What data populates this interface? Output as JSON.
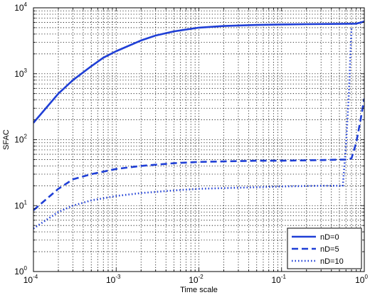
{
  "chart_data": {
    "type": "line",
    "xlabel": "Time scale",
    "ylabel": "SFAC",
    "xscale": "log",
    "yscale": "log",
    "xlim": [
      0.0001,
      1
    ],
    "ylim": [
      1,
      10000
    ],
    "x_ticks": [
      {
        "base": "10",
        "exp": "-4",
        "value": 0.0001
      },
      {
        "base": "10",
        "exp": "-3",
        "value": 0.001
      },
      {
        "base": "10",
        "exp": "-2",
        "value": 0.01
      },
      {
        "base": "10",
        "exp": "-1",
        "value": 0.1
      },
      {
        "base": "10",
        "exp": "0",
        "value": 1
      }
    ],
    "y_ticks": [
      {
        "base": "10",
        "exp": "0",
        "value": 1
      },
      {
        "base": "10",
        "exp": "1",
        "value": 10
      },
      {
        "base": "10",
        "exp": "2",
        "value": 100
      },
      {
        "base": "10",
        "exp": "3",
        "value": 1000
      },
      {
        "base": "10",
        "exp": "4",
        "value": 10000
      }
    ],
    "grid": true,
    "legend_position": "bottom-right",
    "line_color": "#1f3fd6",
    "series": [
      {
        "name": "nD=0",
        "style": "solid",
        "x": [
          0.0001,
          0.0002,
          0.0003,
          0.0005,
          0.0007,
          0.001,
          0.002,
          0.003,
          0.005,
          0.01,
          0.02,
          0.05,
          0.1,
          0.2,
          0.5,
          0.8,
          1
        ],
        "y": [
          180,
          500,
          800,
          1300,
          1750,
          2200,
          3200,
          3800,
          4400,
          5000,
          5300,
          5500,
          5600,
          5650,
          5700,
          5750,
          6200
        ]
      },
      {
        "name": "nD=5",
        "style": "dashed",
        "x": [
          0.0001,
          0.0002,
          0.0003,
          0.0005,
          0.001,
          0.002,
          0.005,
          0.01,
          0.05,
          0.1,
          0.3,
          0.6,
          0.7,
          0.8,
          0.9,
          1
        ],
        "y": [
          8.5,
          18,
          25,
          30,
          36,
          40,
          44,
          46,
          48,
          48,
          49,
          50,
          52,
          90,
          200,
          420
        ]
      },
      {
        "name": "nD=10",
        "style": "dotted",
        "x": [
          0.0001,
          0.0002,
          0.0003,
          0.0005,
          0.001,
          0.002,
          0.005,
          0.01,
          0.05,
          0.1,
          0.3,
          0.55,
          0.6,
          0.65,
          0.7
        ],
        "y": [
          4.5,
          8,
          10,
          12,
          14,
          15.5,
          17,
          18,
          19,
          19.5,
          20,
          20,
          80,
          500,
          5000
        ]
      }
    ]
  }
}
